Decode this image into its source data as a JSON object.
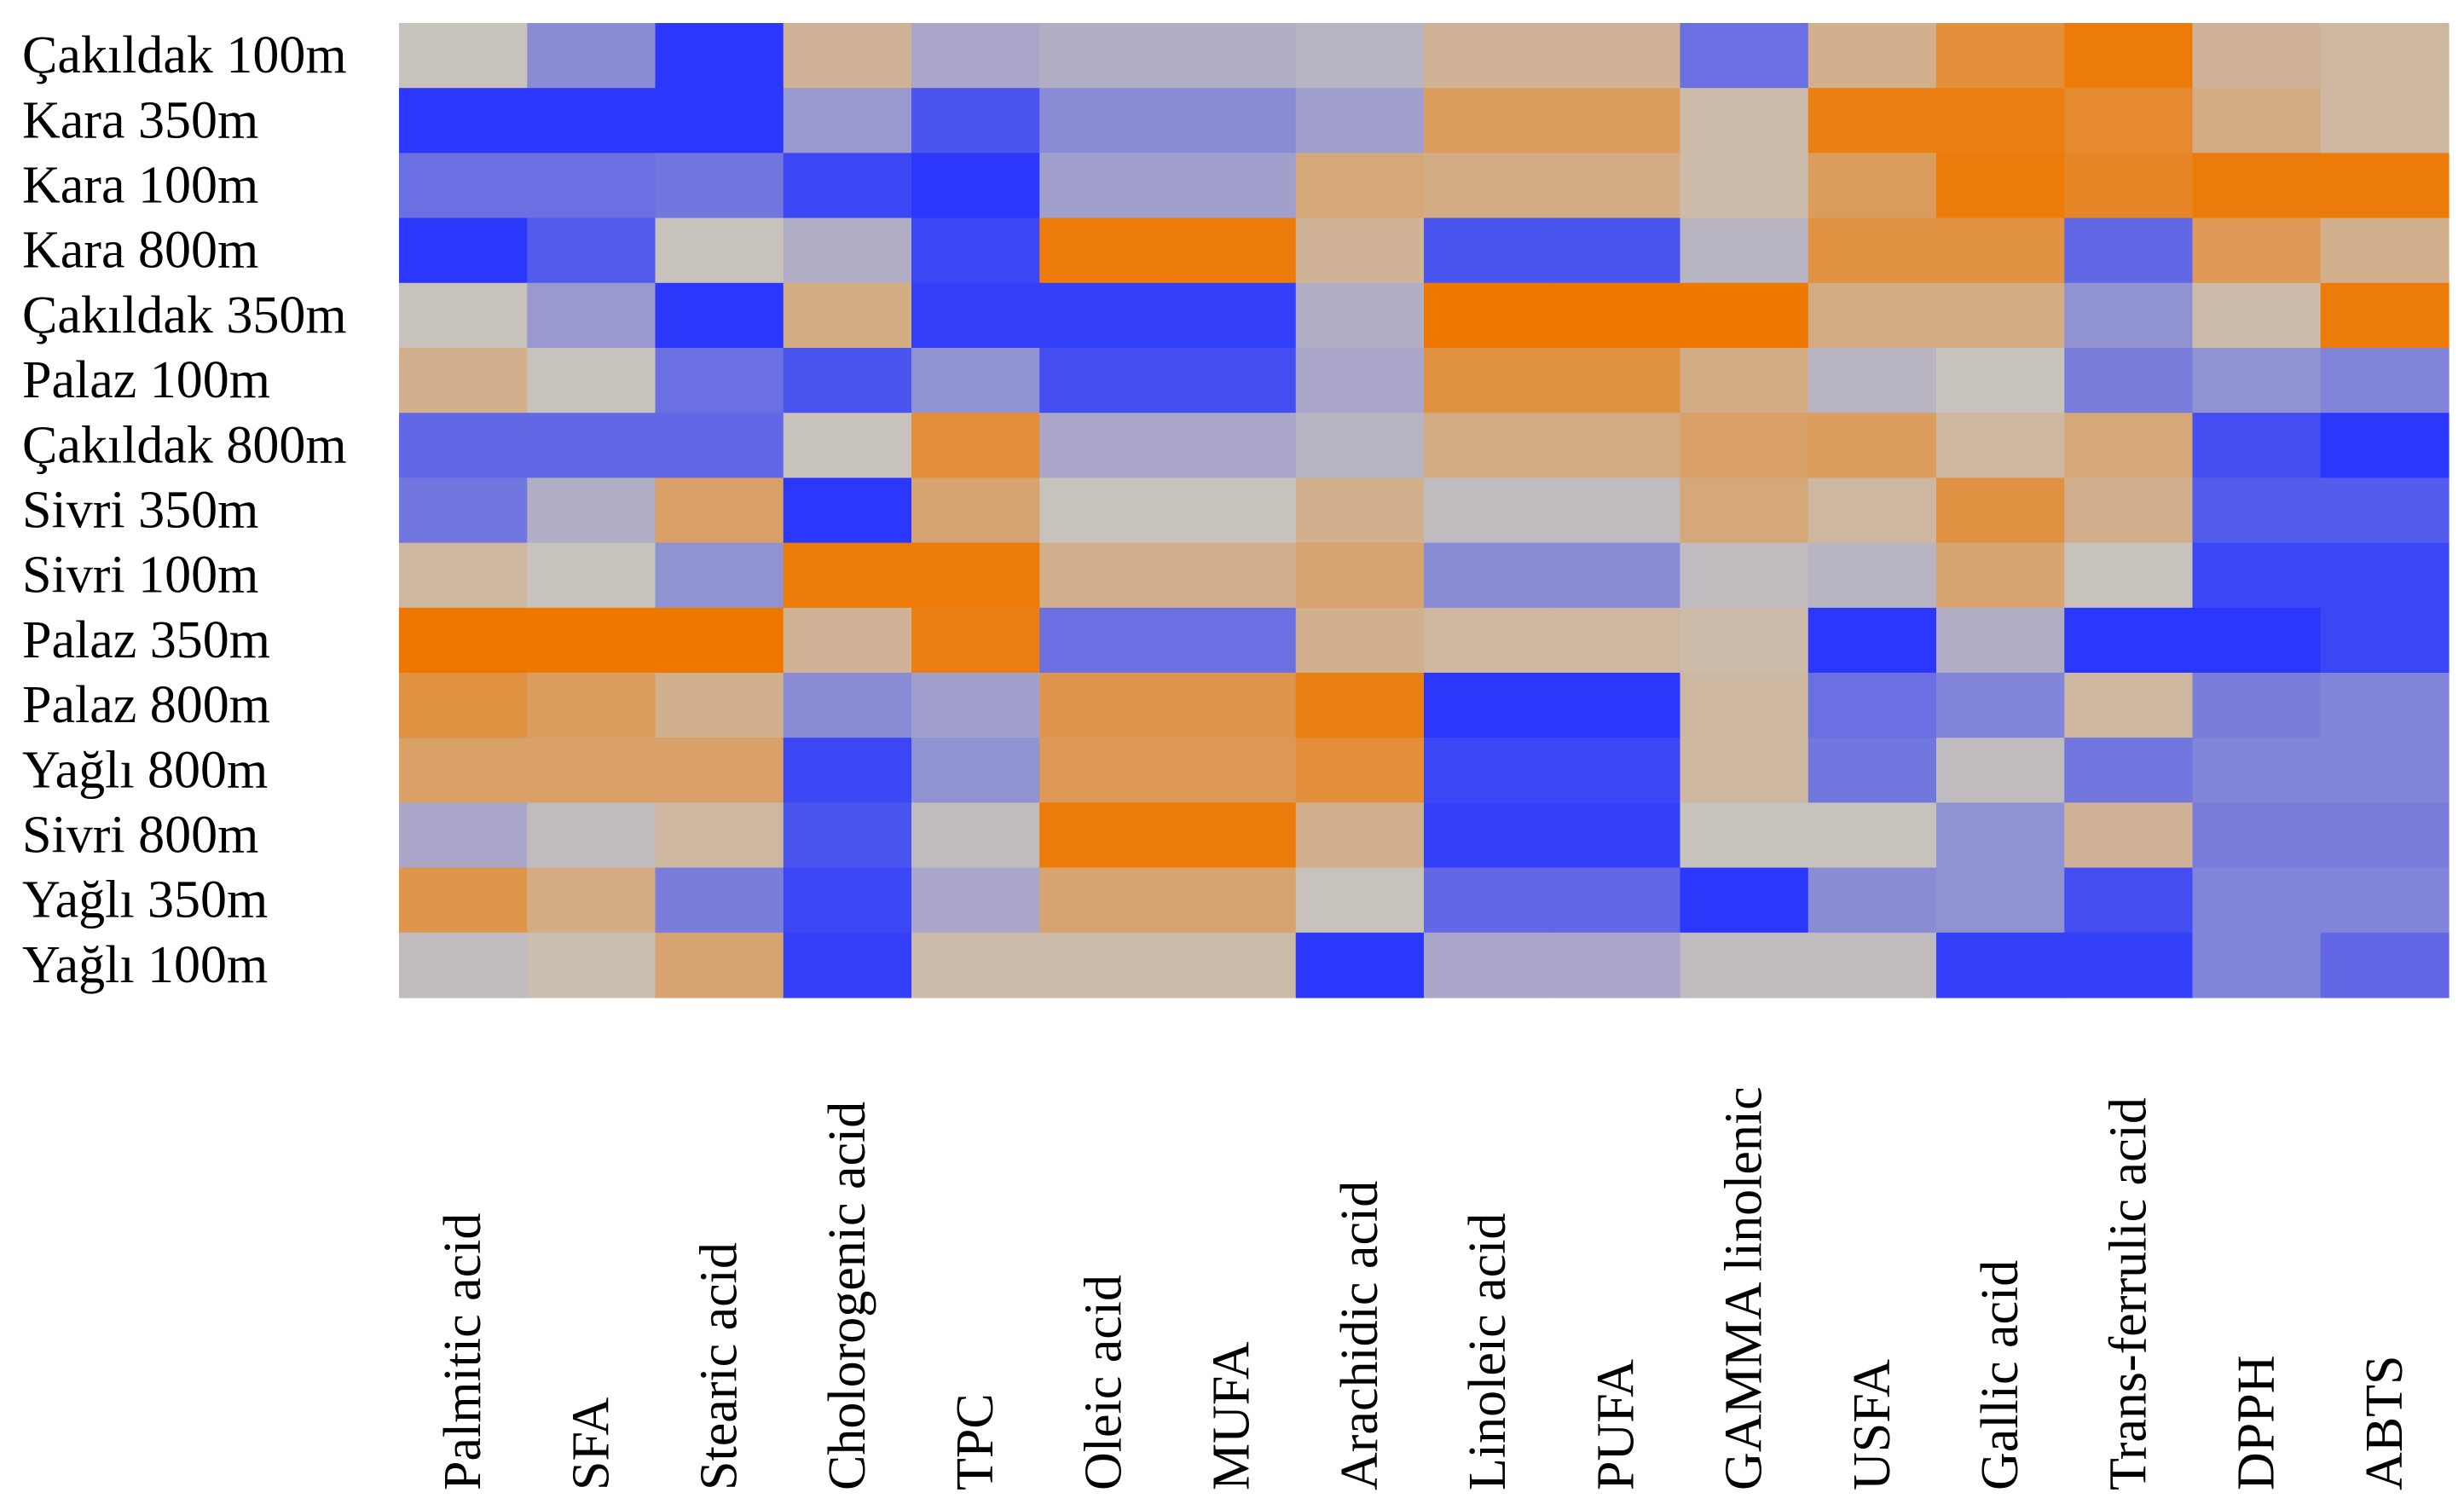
{
  "chart_data": {
    "type": "heatmap",
    "title": "",
    "xlabel": "",
    "ylabel": "",
    "color_scale": {
      "low": "#2b38fb",
      "mid": "#c8c2bc",
      "high": "#ee7700",
      "range": [
        -2,
        2
      ]
    },
    "rows": [
      "Çakıldak 100m",
      "Kara 350m",
      "Kara 100m",
      "Kara 800m",
      "Çakıldak 350m",
      "Palaz 100m",
      "Çakıldak 800m",
      "Sivri 350m",
      "Sivri 100m",
      "Palaz 350m",
      "Palaz 800m",
      "Yağlı 800m",
      "Sivri 800m",
      "Yağlı 350m",
      "Yağlı 100m"
    ],
    "columns": [
      "Palmitic acid",
      "SFA",
      "Stearic acid",
      "Cholorogenic acid",
      "TPC",
      "Oleic acid",
      "MUFA",
      "Arachidic acid",
      "Linoleic acid",
      "PUFA",
      "GAMMA linolenic",
      "USFA",
      "Gallic acid",
      "Trans-ferrulic acid",
      "DPPH",
      "ABTS"
    ],
    "values": [
      [
        0.0,
        -0.8,
        -2.0,
        0.4,
        -0.4,
        -0.3,
        -0.3,
        -0.2,
        0.4,
        0.4,
        -1.2,
        0.5,
        1.4,
        1.9,
        0.4,
        0.3
      ],
      [
        -2.0,
        -2.0,
        -2.0,
        -0.6,
        -1.6,
        -0.8,
        -0.8,
        -0.5,
        1.0,
        1.0,
        0.2,
        1.8,
        1.8,
        1.5,
        0.6,
        0.3
      ],
      [
        -1.2,
        -1.2,
        -1.1,
        -1.8,
        -2.0,
        -0.5,
        -0.5,
        0.7,
        0.6,
        0.6,
        0.2,
        1.0,
        1.9,
        1.6,
        1.9,
        1.9
      ],
      [
        -2.0,
        -1.5,
        0.0,
        -0.3,
        -1.8,
        1.9,
        1.9,
        0.4,
        -1.6,
        -1.6,
        -0.2,
        1.3,
        1.3,
        -1.3,
        1.1,
        0.5
      ],
      [
        0.0,
        -0.6,
        -2.0,
        0.6,
        -1.9,
        -1.9,
        -1.9,
        -0.3,
        2.0,
        2.0,
        2.0,
        0.6,
        0.6,
        -0.7,
        0.2,
        1.9
      ],
      [
        0.5,
        0.0,
        -1.2,
        -1.6,
        -0.7,
        -1.7,
        -1.7,
        -0.4,
        1.3,
        1.3,
        0.6,
        -0.2,
        0.0,
        -1.0,
        -0.7,
        -0.9
      ],
      [
        -1.3,
        -1.3,
        -1.3,
        0.0,
        1.4,
        -0.4,
        -0.4,
        -0.2,
        0.6,
        0.6,
        0.9,
        1.0,
        0.3,
        0.7,
        -1.7,
        -2.0
      ],
      [
        -1.1,
        -0.3,
        0.9,
        -2.0,
        0.8,
        0.0,
        0.0,
        0.5,
        -0.1,
        -0.1,
        0.7,
        0.3,
        1.3,
        0.5,
        -1.5,
        -1.5
      ],
      [
        0.3,
        0.0,
        -0.7,
        1.9,
        1.9,
        0.5,
        0.5,
        0.8,
        -0.8,
        -0.8,
        -0.1,
        -0.2,
        0.8,
        0.0,
        -1.8,
        -1.8
      ],
      [
        2.0,
        2.0,
        2.0,
        0.4,
        1.8,
        -1.2,
        -1.2,
        0.5,
        0.3,
        0.3,
        0.2,
        -2.0,
        -0.3,
        -2.0,
        -2.0,
        -1.8
      ],
      [
        1.3,
        1.0,
        0.5,
        -0.8,
        -0.5,
        1.2,
        1.2,
        1.8,
        -2.0,
        -2.0,
        0.3,
        -1.2,
        -0.9,
        0.3,
        -1.0,
        -0.9
      ],
      [
        0.9,
        0.9,
        0.9,
        -1.8,
        -0.7,
        1.1,
        1.1,
        1.4,
        -1.8,
        -1.8,
        0.3,
        -1.1,
        -0.1,
        -1.1,
        -0.9,
        -0.9
      ],
      [
        -0.4,
        -0.1,
        0.3,
        -1.6,
        -0.1,
        1.9,
        1.9,
        0.5,
        -1.9,
        -1.9,
        0.0,
        0.0,
        -0.7,
        0.4,
        -1.0,
        -1.0
      ],
      [
        1.2,
        0.6,
        -1.0,
        -1.8,
        -0.4,
        0.8,
        0.8,
        0.0,
        -1.3,
        -1.3,
        -2.0,
        -0.8,
        -0.7,
        -1.7,
        -0.9,
        -0.9
      ],
      [
        -0.1,
        0.1,
        0.8,
        -1.9,
        0.2,
        0.2,
        0.2,
        -2.0,
        -0.4,
        -0.4,
        -0.1,
        -0.1,
        -1.9,
        -1.9,
        -0.9,
        -1.3
      ]
    ]
  }
}
